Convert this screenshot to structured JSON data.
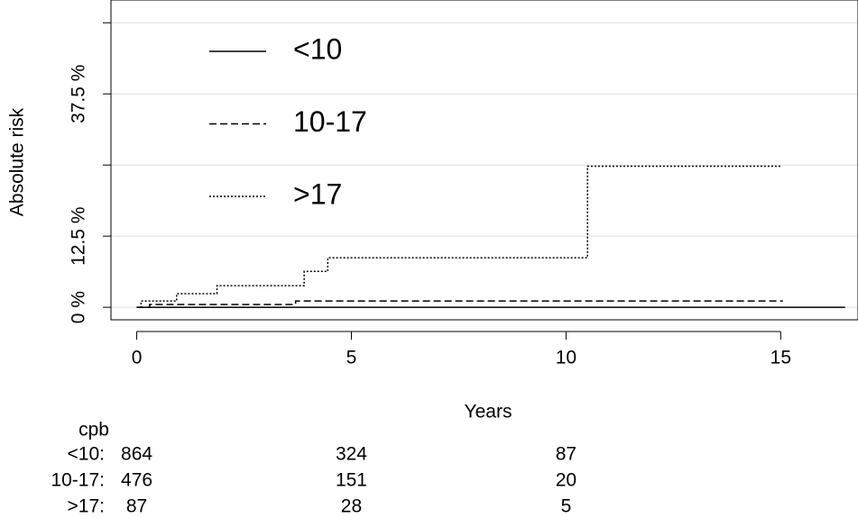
{
  "chart_data": {
    "type": "step",
    "x_label": "Years",
    "y_label": "Absolute risk",
    "xlim": [
      -0.6,
      16.8
    ],
    "ylim": [
      -2.2,
      54
    ],
    "xticks": [
      0,
      5,
      10,
      15
    ],
    "yticks": [
      {
        "value": 0,
        "label": "0 %"
      },
      {
        "value": 12.5,
        "label": "12.5 %"
      },
      {
        "value": 25,
        "label": null
      },
      {
        "value": 37.5,
        "label": "37.5 %"
      },
      {
        "value": 50,
        "label": null
      }
    ],
    "grid": true,
    "legend": "upper left",
    "series": [
      {
        "name": "<10",
        "color": "#000000",
        "dash": "solid",
        "x": [
          0,
          16.5
        ],
        "values": [
          0,
          0
        ]
      },
      {
        "name": "10-17",
        "color": "#000000",
        "dash": "dashed",
        "x": [
          0,
          0.3,
          3.7,
          15.05
        ],
        "values": [
          0,
          0.5,
          1.1,
          1.1
        ]
      },
      {
        "name": ">17",
        "color": "#000000",
        "dash": "dotted",
        "x": [
          0,
          0.1,
          0.93,
          1.87,
          3.9,
          4.45,
          10.5,
          15.03
        ],
        "values": [
          0,
          1.1,
          2.4,
          3.8,
          6.3,
          8.7,
          24.8,
          24.8
        ]
      }
    ],
    "risk_table": {
      "title": "cpb",
      "times": [
        0,
        5,
        10
      ],
      "rows": [
        {
          "label": "<10:",
          "counts": [
            864,
            324,
            87
          ]
        },
        {
          "label": "10-17:",
          "counts": [
            476,
            151,
            20
          ]
        },
        {
          "label": ">17:",
          "counts": [
            87,
            28,
            5
          ]
        }
      ]
    }
  }
}
